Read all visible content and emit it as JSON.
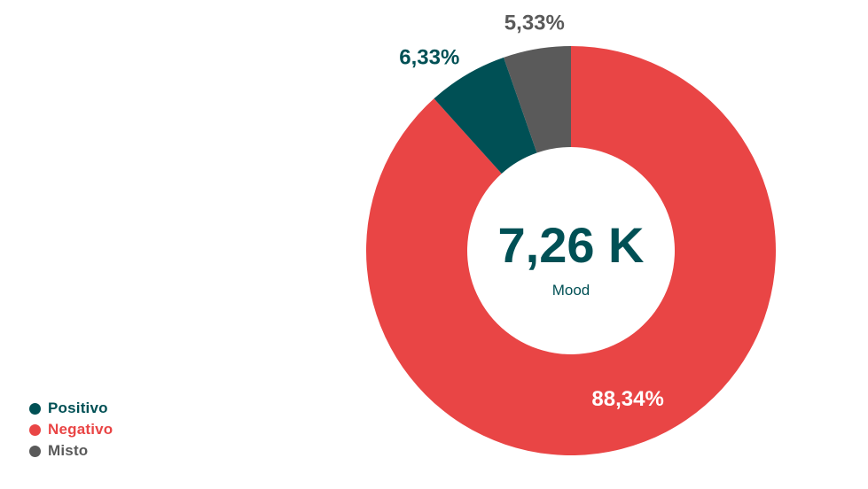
{
  "chart_data": {
    "type": "pie",
    "center_value": "7,26 K",
    "center_label": "Mood",
    "slices": [
      {
        "name": "Positivo",
        "value": 6.33,
        "label": "6,33%",
        "color": "#005055"
      },
      {
        "name": "Negativo",
        "value": 88.34,
        "label": "88,34%",
        "color": "#E94545"
      },
      {
        "name": "Misto",
        "value": 5.33,
        "label": "5,33%",
        "color": "#5A5A5A"
      }
    ],
    "legend_position": "bottom-left",
    "colors": {
      "center_text": "#005055",
      "inside_label": "#ffffff"
    }
  }
}
